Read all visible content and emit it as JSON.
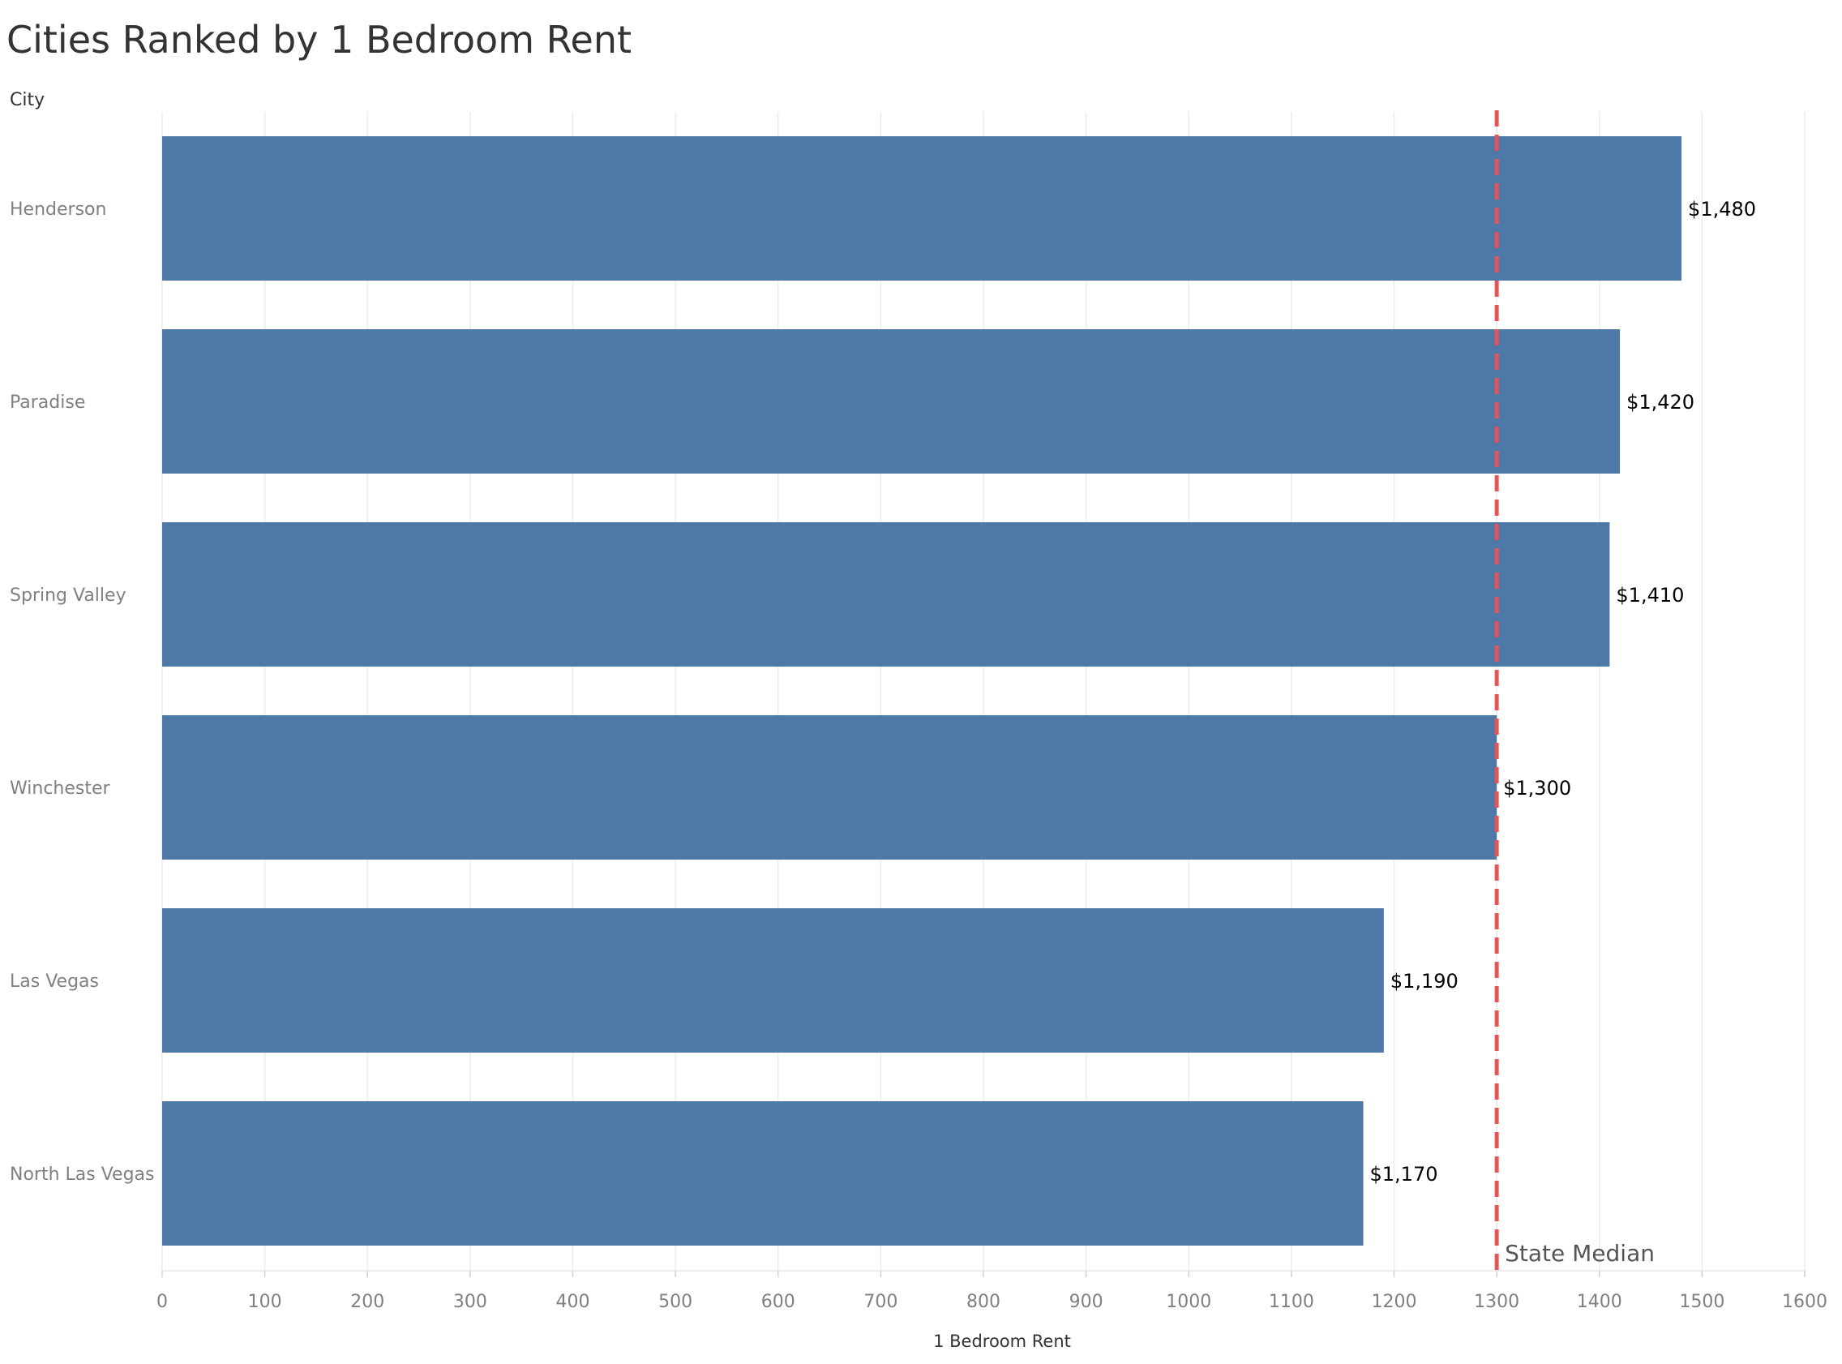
{
  "chart_data": {
    "type": "bar",
    "orientation": "horizontal",
    "title": "Cities Ranked by 1 Bedroom Rent",
    "category_header": "City",
    "xlabel": "1 Bedroom Rent",
    "categories": [
      "Henderson",
      "Paradise",
      "Spring Valley",
      "Winchester",
      "Las Vegas",
      "North Las Vegas"
    ],
    "values": [
      1480,
      1420,
      1410,
      1300,
      1190,
      1170
    ],
    "value_labels": [
      "$1,480",
      "$1,420",
      "$1,410",
      "$1,300",
      "$1,190",
      "$1,170"
    ],
    "xlim": [
      0,
      1600
    ],
    "x_ticks": [
      0,
      100,
      200,
      300,
      400,
      500,
      600,
      700,
      800,
      900,
      1000,
      1100,
      1200,
      1300,
      1400,
      1500,
      1600
    ],
    "grid": true,
    "reference_line": {
      "label": "State Median",
      "value": 1300,
      "color": "#e15759",
      "style": "dashed"
    },
    "bar_color": "#4e79a7"
  }
}
